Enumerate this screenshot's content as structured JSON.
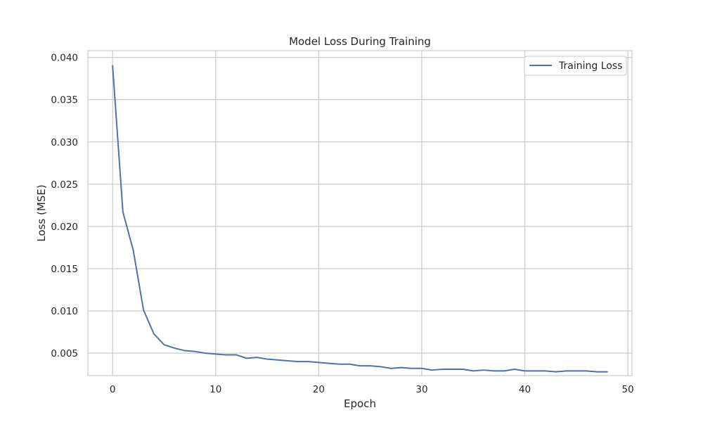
{
  "chart_data": {
    "type": "line",
    "title": "Model Loss During Training",
    "xlabel": "Epoch",
    "ylabel": "Loss (MSE)",
    "xlim": [
      -2.4,
      50.4
    ],
    "ylim": [
      0.00235,
      0.0408
    ],
    "xticks": [
      0,
      10,
      20,
      30,
      40,
      50
    ],
    "xtick_labels": [
      "0",
      "10",
      "20",
      "30",
      "40",
      "50"
    ],
    "yticks": [
      0.005,
      0.01,
      0.015,
      0.02,
      0.025,
      0.03,
      0.035,
      0.04
    ],
    "ytick_labels": [
      "0.005",
      "0.010",
      "0.015",
      "0.020",
      "0.025",
      "0.030",
      "0.035",
      "0.040"
    ],
    "grid": true,
    "legend_position": "top-right",
    "series": [
      {
        "name": "Training Loss",
        "color": "#4c72b0",
        "x": [
          0,
          1,
          2,
          3,
          4,
          5,
          6,
          7,
          8,
          9,
          10,
          11,
          12,
          13,
          14,
          15,
          16,
          17,
          18,
          19,
          20,
          21,
          22,
          23,
          24,
          25,
          26,
          27,
          28,
          29,
          30,
          31,
          32,
          33,
          34,
          35,
          36,
          37,
          38,
          39,
          40,
          41,
          42,
          43,
          44,
          45,
          46,
          47,
          48
        ],
        "values": [
          0.039,
          0.0217,
          0.0172,
          0.0101,
          0.0073,
          0.006,
          0.0056,
          0.0053,
          0.0052,
          0.005,
          0.0049,
          0.0048,
          0.0048,
          0.0044,
          0.0045,
          0.0043,
          0.0042,
          0.0041,
          0.004,
          0.004,
          0.0039,
          0.0038,
          0.0037,
          0.0037,
          0.0035,
          0.0035,
          0.0034,
          0.0032,
          0.0033,
          0.0032,
          0.0032,
          0.003,
          0.0031,
          0.0031,
          0.0031,
          0.0029,
          0.003,
          0.0029,
          0.0029,
          0.0031,
          0.0029,
          0.0029,
          0.0029,
          0.0028,
          0.0029,
          0.0029,
          0.0029,
          0.0028,
          0.0028
        ]
      }
    ]
  }
}
